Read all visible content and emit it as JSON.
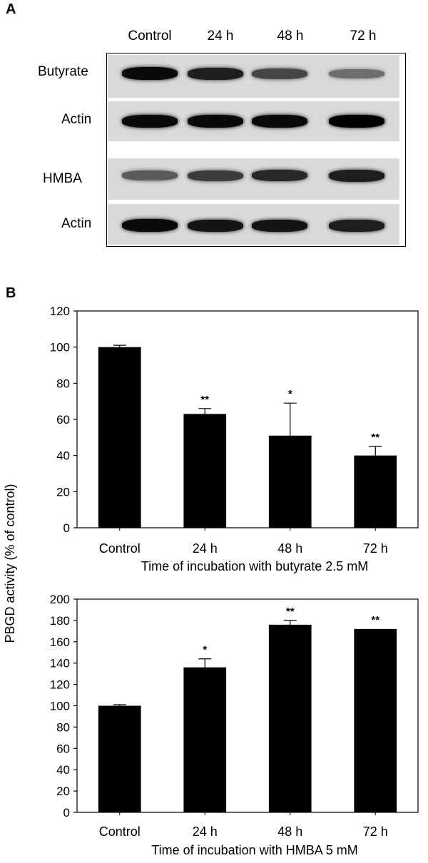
{
  "panel_a": {
    "label": "A",
    "lanes": [
      "Control",
      "24 h",
      "48 h",
      "72 h"
    ],
    "rows": [
      "Butyrate",
      "Actin",
      "HMBA",
      "Actin"
    ],
    "band_intensity": [
      [
        0.95,
        0.85,
        0.65,
        0.45
      ],
      [
        0.95,
        0.95,
        0.95,
        1.0
      ],
      [
        0.55,
        0.7,
        0.8,
        0.85
      ],
      [
        0.95,
        0.9,
        0.9,
        0.85
      ]
    ]
  },
  "panel_b": {
    "label": "B",
    "ylabel": "PBGD activity (% of control)"
  },
  "chart_data": [
    {
      "type": "bar",
      "categories": [
        "Control",
        "24 h",
        "48 h",
        "72 h"
      ],
      "values": [
        100,
        63,
        51,
        40
      ],
      "errors": [
        1,
        3,
        18,
        5
      ],
      "significance": [
        "",
        "**",
        "*",
        "**"
      ],
      "ylim": [
        0,
        120
      ],
      "yticks": [
        "0",
        "20",
        "40",
        "60",
        "80",
        "100",
        "120"
      ],
      "xlabel": "Time of incubation with butyrate 2.5 mM",
      "bar_color": "#000000"
    },
    {
      "type": "bar",
      "categories": [
        "Control",
        "24 h",
        "48 h",
        "72 h"
      ],
      "values": [
        100,
        136,
        176,
        172
      ],
      "errors": [
        1,
        8,
        4,
        0
      ],
      "significance": [
        "",
        "*",
        "**",
        "**"
      ],
      "ylim": [
        0,
        200
      ],
      "yticks": [
        "0",
        "20",
        "40",
        "60",
        "80",
        "100",
        "120",
        "140",
        "160",
        "180",
        "200"
      ],
      "xlabel": "Time of incubation with HMBA 5 mM",
      "bar_color": "#000000"
    }
  ]
}
